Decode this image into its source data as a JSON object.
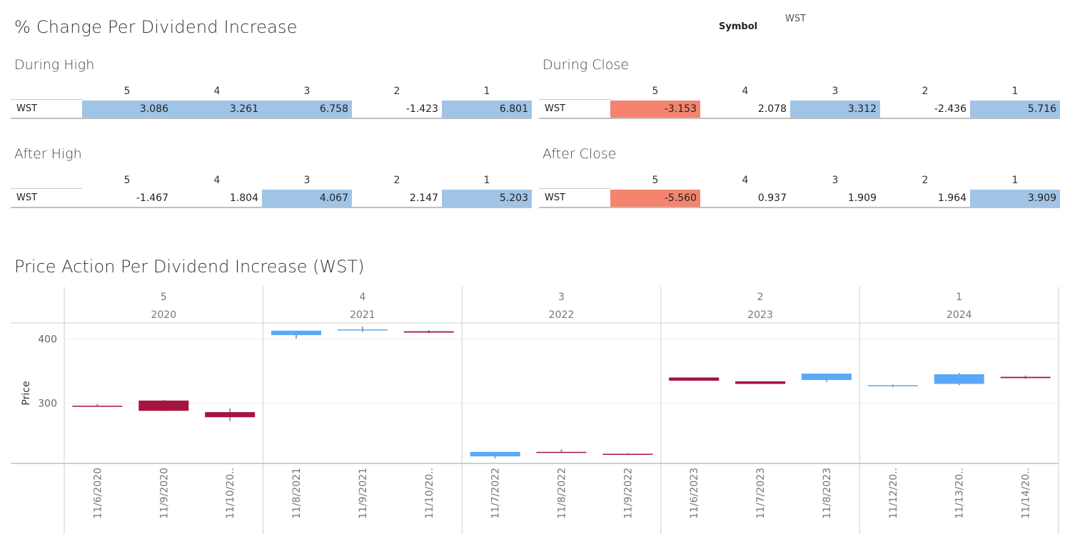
{
  "header": {
    "title": "% Change Per Dividend Increase",
    "symbol_label": "Symbol",
    "symbol_value": "WST"
  },
  "colors": {
    "positive": "#a0c4e8",
    "negative": "#f4846f",
    "up_candle": "#5aa9f7",
    "down_candle": "#a5143f"
  },
  "tables": [
    {
      "title": "During High",
      "row_label": "WST",
      "columns": [
        "5",
        "4",
        "3",
        "2",
        "1"
      ],
      "values": [
        "3.086",
        "3.261",
        "6.758",
        "-1.423",
        "6.801"
      ],
      "colors": [
        "#a0c4e8",
        "#a0c4e8",
        "#a0c4e8",
        "#ffffff",
        "#a0c4e8"
      ]
    },
    {
      "title": "During Close",
      "row_label": "WST",
      "columns": [
        "5",
        "4",
        "3",
        "2",
        "1"
      ],
      "values": [
        "-3.153",
        "2.078",
        "3.312",
        "-2.436",
        "5.716"
      ],
      "colors": [
        "#f4846f",
        "#ffffff",
        "#a0c4e8",
        "#ffffff",
        "#a0c4e8"
      ]
    },
    {
      "title": "After High",
      "row_label": "WST",
      "columns": [
        "5",
        "4",
        "3",
        "2",
        "1"
      ],
      "values": [
        "-1.467",
        "1.804",
        "4.067",
        "2.147",
        "5.203"
      ],
      "colors": [
        "#ffffff",
        "#ffffff",
        "#a0c4e8",
        "#ffffff",
        "#a0c4e8"
      ]
    },
    {
      "title": "After Close",
      "row_label": "WST",
      "columns": [
        "5",
        "4",
        "3",
        "2",
        "1"
      ],
      "values": [
        "-5.560",
        "0.937",
        "1.909",
        "1.964",
        "3.909"
      ],
      "colors": [
        "#f4846f",
        "#ffffff",
        "#ffffff",
        "#ffffff",
        "#a0c4e8"
      ]
    }
  ],
  "chart_data": {
    "type": "candlestick",
    "title": "Price Action Per Dividend Increase (WST)",
    "ylabel": "Price",
    "yticks": [
      300,
      400
    ],
    "ylim": [
      206,
      425
    ],
    "grid": true,
    "panels": [
      {
        "rank": "5",
        "year": "2020",
        "candles": [
          {
            "date": "11/6/2020",
            "open": 296,
            "close": 295,
            "high": 299,
            "low": 295,
            "color": "#a5143f"
          },
          {
            "date": "11/9/2020",
            "open": 304,
            "close": 288,
            "high": 305,
            "low": 288,
            "color": "#a5143f"
          },
          {
            "date": "11/10/20..",
            "open": 286,
            "close": 278,
            "high": 292,
            "low": 272,
            "color": "#a5143f"
          }
        ]
      },
      {
        "rank": "4",
        "year": "2021",
        "candles": [
          {
            "date": "11/8/2021",
            "open": 406,
            "close": 413,
            "high": 413,
            "low": 401,
            "color": "#5aa9f7"
          },
          {
            "date": "11/9/2021",
            "open": 414,
            "close": 415,
            "high": 419,
            "low": 411,
            "color": "#5aa9f7"
          },
          {
            "date": "11/10/20..",
            "open": 412,
            "close": 410,
            "high": 414,
            "low": 409,
            "color": "#a5143f"
          }
        ]
      },
      {
        "rank": "3",
        "year": "2022",
        "candles": [
          {
            "date": "11/7/2022",
            "open": 217,
            "close": 224,
            "high": 224,
            "low": 214,
            "color": "#5aa9f7"
          },
          {
            "date": "11/8/2022",
            "open": 223,
            "close": 224,
            "high": 228,
            "low": 223,
            "color": "#a5143f"
          },
          {
            "date": "11/9/2022",
            "open": 221,
            "close": 220,
            "high": 222,
            "low": 219,
            "color": "#a5143f"
          }
        ]
      },
      {
        "rank": "2",
        "year": "2023",
        "candles": [
          {
            "date": "11/6/2023",
            "open": 340,
            "close": 335,
            "high": 340,
            "low": 335,
            "color": "#a5143f"
          },
          {
            "date": "11/7/2023",
            "open": 334,
            "close": 330,
            "high": 334,
            "low": 330,
            "color": "#a5143f"
          },
          {
            "date": "11/8/2023",
            "open": 336,
            "close": 346,
            "high": 346,
            "low": 333,
            "color": "#5aa9f7"
          }
        ]
      },
      {
        "rank": "1",
        "year": "2024",
        "candles": [
          {
            "date": "11/12/20..",
            "open": 327,
            "close": 328,
            "high": 329,
            "low": 325,
            "color": "#5aa9f7"
          },
          {
            "date": "11/13/20..",
            "open": 330,
            "close": 345,
            "high": 347,
            "low": 328,
            "color": "#5aa9f7"
          },
          {
            "date": "11/14/20..",
            "open": 341,
            "close": 339,
            "high": 343,
            "low": 338,
            "color": "#a5143f"
          }
        ]
      }
    ]
  }
}
